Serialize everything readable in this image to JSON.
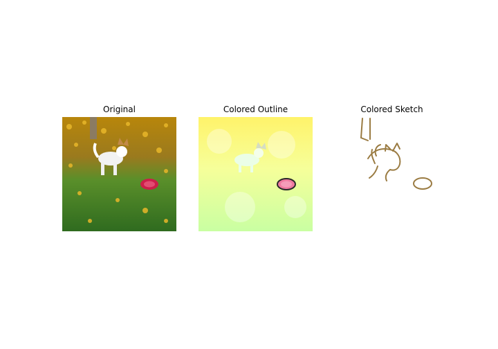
{
  "figure": {
    "panels": [
      {
        "title": "Original"
      },
      {
        "title": "Colored Outline"
      },
      {
        "title": "Colored Sketch"
      }
    ]
  }
}
